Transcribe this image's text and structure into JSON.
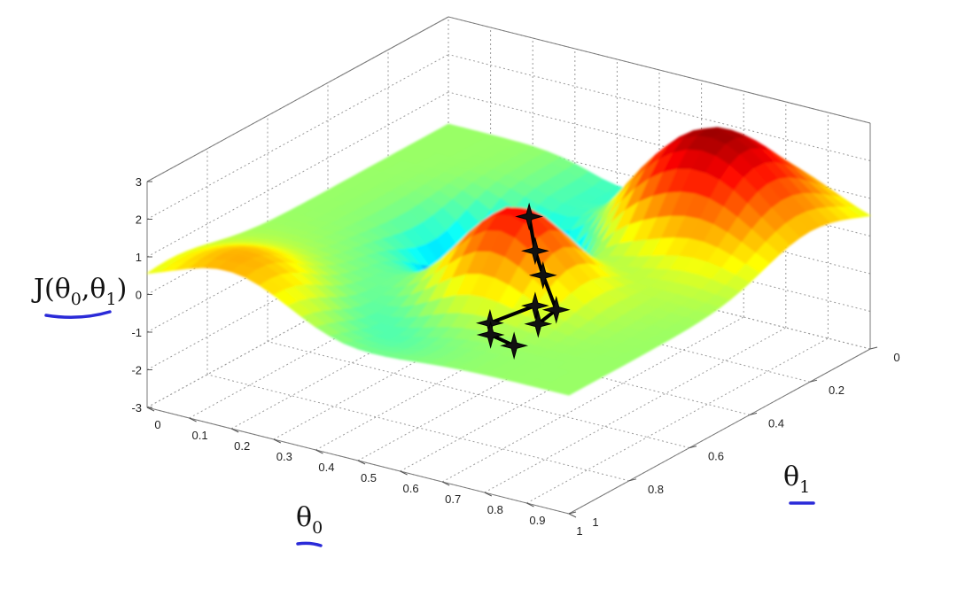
{
  "chart_data": {
    "type": "surface",
    "title": "",
    "xlabel": "θ0",
    "ylabel": "θ1",
    "zlabel": "J(θ0,θ1)",
    "xlim": [
      0,
      1
    ],
    "ylim": [
      0,
      1
    ],
    "zlim": [
      -3,
      3
    ],
    "x_ticks": [
      "0",
      "0.1",
      "0.2",
      "0.3",
      "0.4",
      "0.5",
      "0.6",
      "0.7",
      "0.8",
      "0.9",
      "1"
    ],
    "y_ticks": [
      "0",
      "0.2",
      "0.4",
      "0.6",
      "0.8",
      "1"
    ],
    "z_ticks": [
      "-3",
      "-2",
      "-1",
      "0",
      "1",
      "2",
      "3"
    ],
    "grid": true,
    "colormap": "jet",
    "descent_path": {
      "theta0": [
        0.62,
        0.62,
        0.61,
        0.62,
        0.57,
        0.52,
        0.42,
        0.4,
        0.42
      ],
      "theta1": [
        0.4,
        0.42,
        0.46,
        0.49,
        0.5,
        0.56,
        0.55,
        0.58,
        0.63
      ],
      "cost": [
        2.07,
        1.07,
        0.22,
        -0.8,
        -1.36,
        -1.28,
        -1.98,
        -2.48,
        -2.93
      ]
    }
  },
  "labels": {
    "z_main": "J(θ",
    "z_sub0": "0",
    "z_mid": ",θ",
    "z_sub1": "1",
    "z_end": ")",
    "x_main": "θ",
    "x_sub": "0",
    "y_main": "θ",
    "y_sub": "1"
  }
}
